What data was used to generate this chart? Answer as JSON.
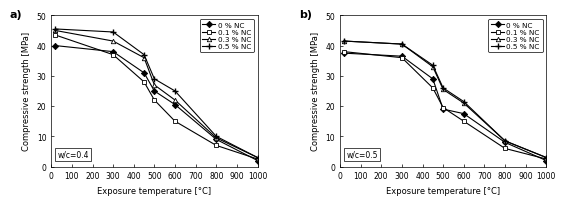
{
  "x_temps": [
    20,
    300,
    450,
    500,
    600,
    800,
    1000
  ],
  "panel_a": {
    "label": "a)",
    "wc_label": "w/c=0.4",
    "series": {
      "0 % NC": [
        40.0,
        38.0,
        31.0,
        25.0,
        20.5,
        9.0,
        2.0
      ],
      "0.1 % NC": [
        43.5,
        37.0,
        28.0,
        22.0,
        15.0,
        7.0,
        2.5
      ],
      "0.3 % NC": [
        45.0,
        41.5,
        36.0,
        27.0,
        22.0,
        9.5,
        3.0
      ],
      "0.5 % NC": [
        45.5,
        44.5,
        37.0,
        29.0,
        25.0,
        10.0,
        3.0
      ]
    }
  },
  "panel_b": {
    "label": "b)",
    "wc_label": "w/c=0.5",
    "series": {
      "0 % NC": [
        37.5,
        36.5,
        29.0,
        19.0,
        17.5,
        8.0,
        2.0
      ],
      "0.1 % NC": [
        38.0,
        36.0,
        26.0,
        19.5,
        15.0,
        6.0,
        2.5
      ],
      "0.3 % NC": [
        41.5,
        40.5,
        33.0,
        25.5,
        21.0,
        8.5,
        3.0
      ],
      "0.5 % NC": [
        41.5,
        40.5,
        33.5,
        26.0,
        21.5,
        8.5,
        3.0
      ]
    }
  },
  "legend_labels": [
    "0 % NC",
    "0.1 % NC",
    "0.3 % NC",
    "0.5 % NC"
  ],
  "markers": [
    "D",
    "s",
    "^",
    "+"
  ],
  "colors": [
    "black",
    "black",
    "black",
    "black"
  ],
  "ylabel": "Compressive strength [MPa]",
  "xlabel": "Exposure temperature [°C]",
  "ylim": [
    0,
    50
  ],
  "xlim": [
    0,
    1000
  ],
  "xticks": [
    0,
    100,
    200,
    300,
    400,
    500,
    600,
    700,
    800,
    900,
    1000
  ],
  "yticks": [
    0,
    10,
    20,
    30,
    40,
    50
  ],
  "marker_size": 3.2,
  "line_width": 0.8,
  "font_size": 5.5,
  "label_font_size": 6.0,
  "tick_font_size": 5.5,
  "legend_font_size": 5.2
}
